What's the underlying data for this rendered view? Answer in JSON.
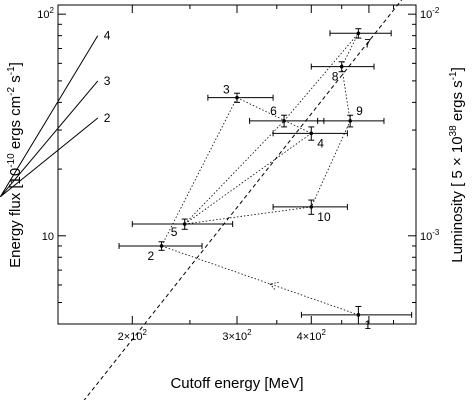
{
  "chart_data": {
    "type": "scatter",
    "xlabel": "Cutoff energy [MeV]",
    "ylabel": "Energy flux [10",
    "ylabel_exp": "-10",
    "ylabel_units": " ergs cm",
    "ylabel_units_exp": "-2",
    "ylabel_units2": " s",
    "ylabel_units2_exp": "-1",
    "ylabel_close": "]",
    "y2label": "Luminosity [ 5 × 10",
    "y2label_exp": "38",
    "y2label_units": " ergs s",
    "y2label_units_exp": "-1",
    "y2label_close": "]",
    "x_scale": "log",
    "y_scale": "log",
    "xlim": [
      150,
      600
    ],
    "ylim": [
      4,
      110
    ],
    "x_ticks": [
      {
        "value": 200,
        "base": "2×10",
        "exp": "2"
      },
      {
        "value": 300,
        "base": "3×10",
        "exp": "2"
      },
      {
        "value": 400,
        "base": "4×10",
        "exp": "2"
      }
    ],
    "y_ticks": [
      {
        "value": 10,
        "base": "10",
        "exp": ""
      },
      {
        "value": 100,
        "base": "10",
        "exp": "2"
      }
    ],
    "y2_ticks": [
      {
        "value": 10,
        "base": "10",
        "exp": "-3"
      },
      {
        "value": 100,
        "base": "10",
        "exp": "-2"
      }
    ],
    "points": [
      {
        "label": "1",
        "x": 480,
        "y": 4.4,
        "xerr": [
          385,
          590
        ],
        "yerr": [
          4.0,
          4.8
        ]
      },
      {
        "label": "2",
        "x": 224,
        "y": 9.0,
        "xerr": [
          190,
          262
        ],
        "yerr": [
          8.6,
          9.4
        ]
      },
      {
        "label": "3",
        "x": 300,
        "y": 42,
        "xerr": [
          268,
          345
        ],
        "yerr": [
          40,
          44
        ]
      },
      {
        "label": "4",
        "x": 400,
        "y": 29,
        "xerr": [
          345,
          460
        ],
        "yerr": [
          27,
          31
        ]
      },
      {
        "label": "5",
        "x": 245,
        "y": 11.3,
        "xerr": [
          200,
          295
        ],
        "yerr": [
          10.7,
          11.9
        ]
      },
      {
        "label": "6",
        "x": 360,
        "y": 33,
        "xerr": [
          315,
          420
        ],
        "yerr": [
          31,
          35
        ]
      },
      {
        "label": "7",
        "x": 480,
        "y": 82,
        "xerr": [
          430,
          545
        ],
        "yerr": [
          78,
          86
        ]
      },
      {
        "label": "8",
        "x": 450,
        "y": 58,
        "xerr": [
          400,
          510
        ],
        "yerr": [
          55,
          61
        ]
      },
      {
        "label": "9",
        "x": 465,
        "y": 33,
        "xerr": [
          410,
          530
        ],
        "yerr": [
          31,
          35
        ]
      },
      {
        "label": "10",
        "x": 400,
        "y": 13.5,
        "xerr": [
          345,
          460
        ],
        "yerr": [
          12.5,
          14.5
        ]
      }
    ],
    "path_order": [
      "1",
      "2",
      "3",
      "4",
      "5",
      "6",
      "7",
      "8",
      "9",
      "10",
      "5"
    ],
    "fan_lines": [
      {
        "label": "4",
        "x_end": 175,
        "y_end": 80
      },
      {
        "label": "3",
        "x_end": 175,
        "y_end": 50
      },
      {
        "label": "2",
        "x_end": 175,
        "y_end": 34
      }
    ],
    "fan_origin": {
      "x": 120,
      "y": 15
    },
    "reference_line": {
      "x0": 160,
      "y0": 1.6,
      "x1": 600,
      "y1": 140
    }
  }
}
